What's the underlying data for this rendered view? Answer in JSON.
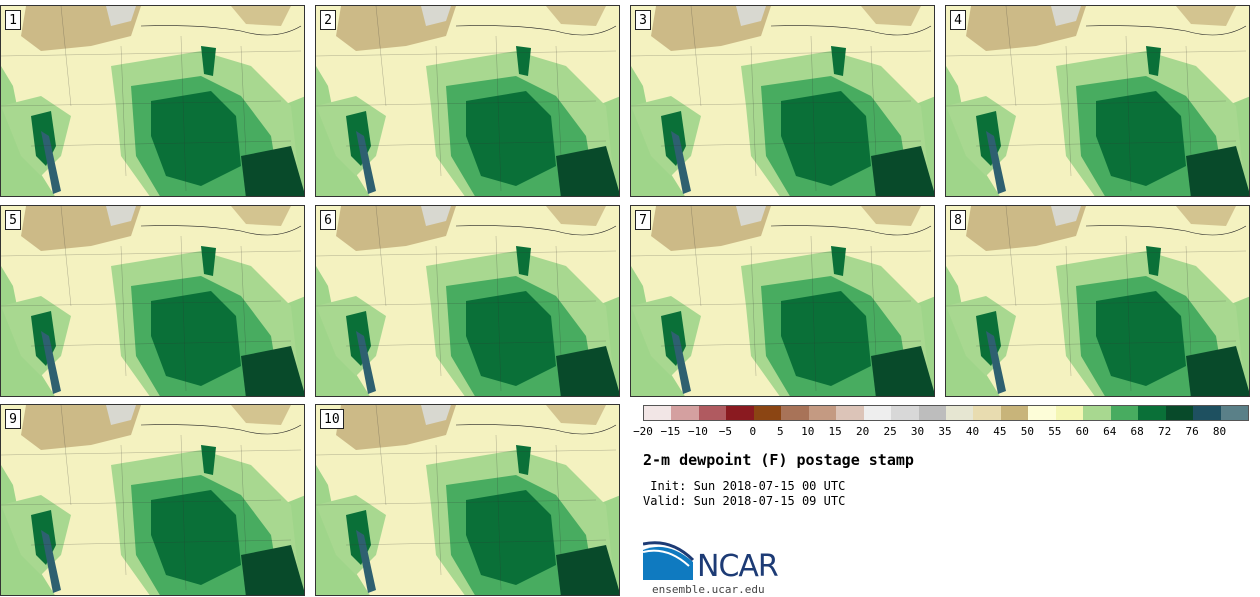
{
  "page": {
    "title": "2-m dewpoint (F) postage stamp",
    "init": " Init: Sun 2018-07-15 00 UTC",
    "valid": "Valid: Sun 2018-07-15 09 UTC",
    "logo_text": "NCAR",
    "site": "ensemble.ucar.edu"
  },
  "panels": [
    {
      "label": "1"
    },
    {
      "label": "2"
    },
    {
      "label": "3"
    },
    {
      "label": "4"
    },
    {
      "label": "5"
    },
    {
      "label": "6"
    },
    {
      "label": "7"
    },
    {
      "label": "8"
    },
    {
      "label": "9"
    },
    {
      "label": "10"
    }
  ],
  "legend": {
    "colors": [
      "#f2e6e6",
      "#d4a0a0",
      "#b05a60",
      "#8a1a20",
      "#8b4513",
      "#a87358",
      "#c49a82",
      "#dcc4b8",
      "#eeeeee",
      "#d8d8d8",
      "#bdbdbd",
      "#e6e6d2",
      "#e8dcb0",
      "#c8b47a",
      "#fdfdd8",
      "#f4f6b4",
      "#a8d890",
      "#48ac60",
      "#0a7038",
      "#084a2a",
      "#1e5060",
      "#5a8088"
    ],
    "ticks": [
      "−20",
      "−15",
      "−10",
      "−5",
      "0",
      "5",
      "10",
      "15",
      "20",
      "25",
      "30",
      "35",
      "40",
      "45",
      "50",
      "55",
      "60",
      "64",
      "68",
      "72",
      "76",
      "80"
    ]
  },
  "map_colors": {
    "ocean": "#9fd58a",
    "land_yellow": "#f4f2c0",
    "tan": "#c4b07c",
    "light_green": "#a8d890",
    "medium_green": "#48ac60",
    "dark_green": "#0a7038",
    "deepest_green": "#084a2a",
    "teal": "#2e6070"
  }
}
